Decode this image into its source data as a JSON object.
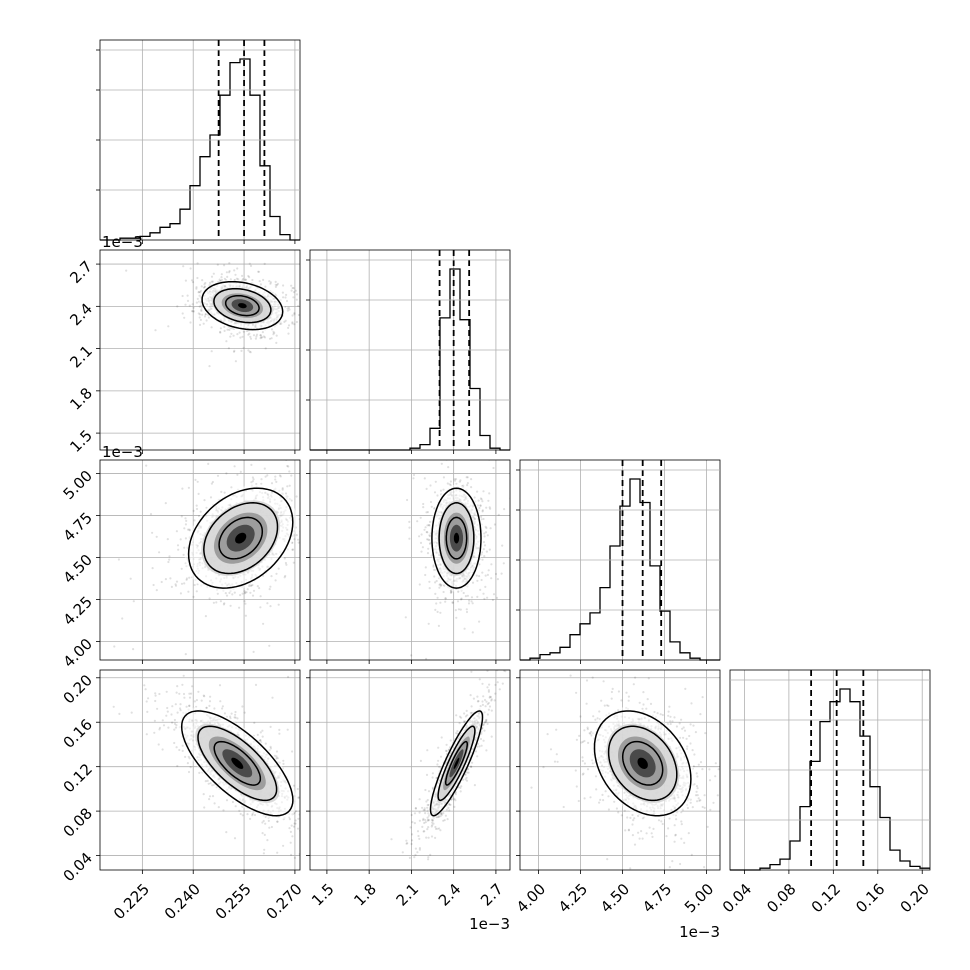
{
  "chart_data": {
    "type": "corner",
    "parameters": [
      {
        "range": [
          0.2125,
          0.2715
        ],
        "ticks": [
          0.225,
          0.24,
          0.255,
          0.27
        ],
        "tick_labels": [
          "0.225",
          "0.240",
          "0.255",
          "0.270"
        ],
        "quantiles": [
          0.2475,
          0.255,
          0.261
        ],
        "offset_label": ""
      },
      {
        "range": [
          1.38,
          2.8
        ],
        "ticks": [
          1.5,
          1.8,
          2.1,
          2.4,
          2.7
        ],
        "tick_labels": [
          "1.5",
          "1.8",
          "2.1",
          "2.4",
          "2.7"
        ],
        "quantiles": [
          2.3,
          2.4,
          2.51
        ],
        "offset_label": "1e−3"
      },
      {
        "range": [
          3.89,
          5.08
        ],
        "ticks": [
          4.0,
          4.25,
          4.5,
          4.75,
          5.0
        ],
        "tick_labels": [
          "4.00",
          "4.25",
          "4.50",
          "4.75",
          "5.00"
        ],
        "quantiles": [
          4.5,
          4.62,
          4.73
        ],
        "offset_label": "1e−3"
      },
      {
        "range": [
          0.027,
          0.207
        ],
        "ticks": [
          0.04,
          0.08,
          0.12,
          0.16,
          0.2
        ],
        "tick_labels": [
          "0.04",
          "0.08",
          "0.12",
          "0.16",
          "0.20"
        ],
        "quantiles": [
          0.1,
          0.123,
          0.147
        ],
        "offset_label": ""
      }
    ],
    "histograms": [
      {
        "x0": 0.2125,
        "bin": 0.00295,
        "counts": [
          0,
          0,
          1,
          1,
          2,
          4,
          7,
          9,
          17,
          30,
          46,
          58,
          80,
          98,
          100,
          80,
          41,
          13,
          3,
          0
        ]
      },
      {
        "x0": 1.38,
        "bin": 0.071,
        "counts": [
          0,
          0,
          0,
          0,
          0,
          0,
          0,
          0,
          0,
          0,
          1,
          3,
          12,
          73,
          100,
          72,
          34,
          8,
          1,
          0
        ]
      },
      {
        "x0": 3.89,
        "bin": 0.0595,
        "counts": [
          0,
          1,
          3,
          4,
          7,
          14,
          20,
          26,
          40,
          63,
          85,
          100,
          87,
          52,
          27,
          10,
          4,
          1,
          0,
          0
        ]
      },
      {
        "x0": 0.027,
        "bin": 0.009,
        "counts": [
          0,
          0,
          0,
          1,
          3,
          6,
          16,
          35,
          60,
          82,
          93,
          100,
          93,
          74,
          46,
          29,
          11,
          5,
          2,
          1
        ]
      }
    ],
    "pairs": [
      {
        "x": 0,
        "y": 1,
        "mean": [
          0.2545,
          2.405
        ],
        "sd": [
          0.0058,
          0.083
        ],
        "corr": -0.25
      },
      {
        "x": 0,
        "y": 2,
        "mean": [
          0.254,
          4.615
        ],
        "sd": [
          0.0075,
          0.145
        ],
        "corr": 0.32
      },
      {
        "x": 1,
        "y": 2,
        "mean": [
          2.42,
          4.615
        ],
        "sd": [
          0.085,
          0.145
        ],
        "corr": 0.0
      },
      {
        "x": 0,
        "y": 3,
        "mean": [
          0.253,
          0.123
        ],
        "sd": [
          0.008,
          0.023
        ],
        "corr": -0.7
      },
      {
        "x": 1,
        "y": 3,
        "mean": [
          2.42,
          0.123
        ],
        "sd": [
          0.09,
          0.023
        ],
        "corr": 0.88
      },
      {
        "x": 2,
        "y": 3,
        "mean": [
          4.62,
          0.123
        ],
        "sd": [
          0.14,
          0.023
        ],
        "corr": -0.3
      }
    ],
    "grid": true,
    "contour_levels": 3,
    "quantile_line_style": "dashed"
  }
}
